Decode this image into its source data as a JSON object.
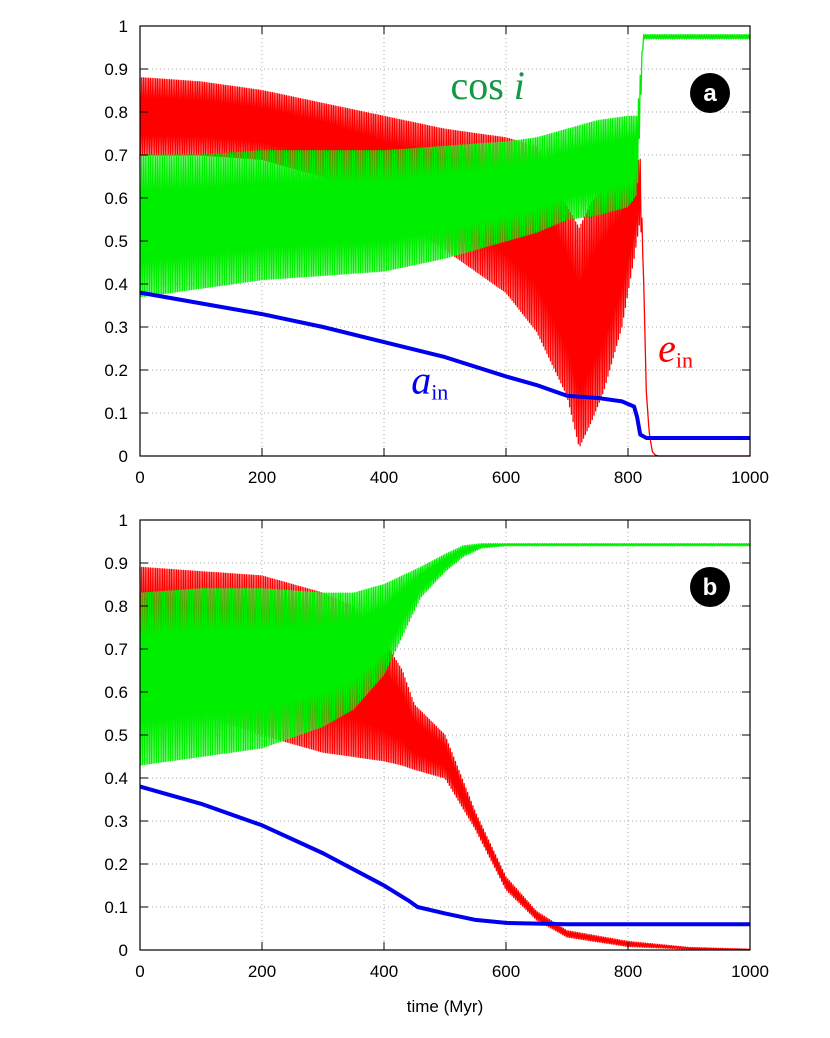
{
  "colors": {
    "ein": "#ff0000",
    "cosi": "#00ee00",
    "cosi_label": "#119944",
    "ain": "#0000ee",
    "grid": "#aaaaaa",
    "badge": "#000000"
  },
  "chart_data": [
    {
      "type": "line",
      "panel_label": "a",
      "xlabel": "",
      "xlim": [
        0,
        1000
      ],
      "ylim": [
        0,
        1
      ],
      "x_ticks": [
        "0",
        "200",
        "400",
        "600",
        "800",
        "1000"
      ],
      "y_ticks": [
        "0",
        "0.1",
        "0.2",
        "0.3",
        "0.4",
        "0.5",
        "0.6",
        "0.7",
        "0.8",
        "0.9",
        "1"
      ],
      "grid": true,
      "annotations": [
        {
          "series": "cos i",
          "text_main": "cos ",
          "text_var": "i",
          "x": 570,
          "y": 0.83
        },
        {
          "series": "a_in",
          "text_main": "a",
          "text_sub": "in",
          "x": 475,
          "y": 0.145
        },
        {
          "series": "e_in",
          "text_main": "e",
          "text_sub": "in",
          "x": 878,
          "y": 0.22
        }
      ],
      "series": [
        {
          "name": "e_in",
          "color_key": "ein",
          "style": "band",
          "x": [
            0,
            100,
            200,
            300,
            400,
            500,
            600,
            650,
            700,
            720,
            740,
            760,
            790,
            810,
            820,
            825,
            830,
            835,
            840,
            845,
            850,
            900,
            1000
          ],
          "low": [
            0.7,
            0.7,
            0.69,
            0.65,
            0.56,
            0.48,
            0.38,
            0.29,
            0.14,
            0.02,
            0.08,
            0.15,
            0.3,
            0.46,
            0.55,
            0.45,
            0.15,
            0.05,
            0.01,
            0.002,
            0,
            0,
            0
          ],
          "high": [
            0.88,
            0.87,
            0.85,
            0.82,
            0.79,
            0.76,
            0.74,
            0.72,
            0.58,
            0.53,
            0.59,
            0.62,
            0.65,
            0.68,
            0.69,
            0.45,
            0.15,
            0.05,
            0.01,
            0.002,
            0,
            0,
            0
          ]
        },
        {
          "name": "cos i",
          "color_key": "cosi",
          "style": "band",
          "x": [
            0,
            100,
            200,
            300,
            400,
            500,
            600,
            650,
            700,
            750,
            800,
            815,
            825,
            830,
            835,
            1000
          ],
          "low": [
            0.37,
            0.39,
            0.41,
            0.42,
            0.43,
            0.46,
            0.5,
            0.52,
            0.55,
            0.56,
            0.58,
            0.61,
            0.97,
            0.97,
            0.97,
            0.97
          ],
          "high": [
            0.7,
            0.7,
            0.71,
            0.71,
            0.71,
            0.72,
            0.73,
            0.74,
            0.76,
            0.78,
            0.79,
            0.79,
            0.98,
            0.98,
            0.98,
            0.98
          ]
        },
        {
          "name": "a_in",
          "color_key": "ain",
          "style": "line",
          "x": [
            0,
            100,
            200,
            300,
            400,
            500,
            600,
            650,
            700,
            750,
            790,
            810,
            815,
            820,
            830,
            1000
          ],
          "y": [
            0.38,
            0.355,
            0.33,
            0.3,
            0.265,
            0.23,
            0.185,
            0.165,
            0.14,
            0.135,
            0.127,
            0.115,
            0.09,
            0.05,
            0.042,
            0.042
          ]
        }
      ]
    },
    {
      "type": "line",
      "panel_label": "b",
      "xlabel": "time (Myr)",
      "xlim": [
        0,
        1000
      ],
      "ylim": [
        0,
        1
      ],
      "x_ticks": [
        "0",
        "200",
        "400",
        "600",
        "800",
        "1000"
      ],
      "y_ticks": [
        "0",
        "0.1",
        "0.2",
        "0.3",
        "0.4",
        "0.5",
        "0.6",
        "0.7",
        "0.8",
        "0.9",
        "1"
      ],
      "grid": true,
      "annotations": [],
      "series": [
        {
          "name": "e_in",
          "color_key": "ein",
          "style": "band",
          "x": [
            0,
            100,
            200,
            250,
            300,
            350,
            400,
            430,
            450,
            500,
            550,
            600,
            650,
            700,
            800,
            900,
            1000
          ],
          "low": [
            0.6,
            0.55,
            0.5,
            0.48,
            0.46,
            0.45,
            0.44,
            0.43,
            0.42,
            0.4,
            0.28,
            0.14,
            0.07,
            0.03,
            0.008,
            0.002,
            0
          ],
          "high": [
            0.89,
            0.88,
            0.87,
            0.85,
            0.83,
            0.8,
            0.72,
            0.65,
            0.57,
            0.5,
            0.32,
            0.17,
            0.09,
            0.045,
            0.02,
            0.006,
            0.002
          ]
        },
        {
          "name": "cos i",
          "color_key": "cosi",
          "style": "band",
          "x": [
            0,
            100,
            200,
            300,
            350,
            400,
            430,
            460,
            500,
            530,
            560,
            600,
            1000
          ],
          "low": [
            0.43,
            0.45,
            0.47,
            0.52,
            0.56,
            0.64,
            0.73,
            0.82,
            0.88,
            0.915,
            0.935,
            0.94,
            0.94
          ],
          "high": [
            0.83,
            0.84,
            0.84,
            0.83,
            0.83,
            0.85,
            0.87,
            0.89,
            0.92,
            0.94,
            0.945,
            0.945,
            0.945
          ]
        },
        {
          "name": "a_in",
          "color_key": "ain",
          "style": "line",
          "x": [
            0,
            100,
            200,
            300,
            400,
            440,
            455,
            500,
            550,
            600,
            700,
            1000
          ],
          "y": [
            0.38,
            0.34,
            0.29,
            0.225,
            0.15,
            0.115,
            0.1,
            0.085,
            0.07,
            0.063,
            0.06,
            0.06
          ]
        }
      ]
    }
  ]
}
